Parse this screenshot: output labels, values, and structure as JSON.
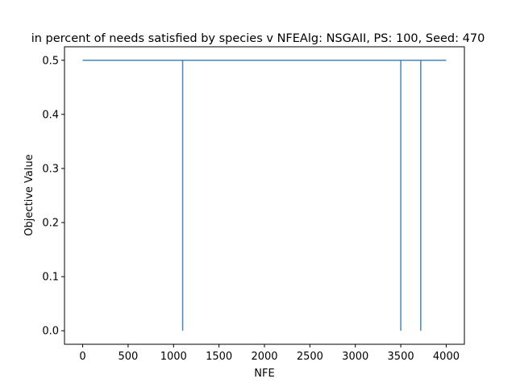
{
  "chart_data": {
    "type": "line",
    "title": "in percent of needs satisfied by species v NFEAlg: NSGAII, PS: 100, Seed: 470",
    "xlabel": "NFE",
    "ylabel": "Objective Value",
    "xlim": [
      -200,
      4200
    ],
    "ylim": [
      -0.025,
      0.525
    ],
    "xticks": [
      0,
      500,
      1000,
      1500,
      2000,
      2500,
      3000,
      3500,
      4000
    ],
    "yticks": [
      0.0,
      0.1,
      0.2,
      0.3,
      0.4,
      0.5
    ],
    "xtick_labels": [
      "0",
      "500",
      "1000",
      "1500",
      "2000",
      "2500",
      "3000",
      "3500",
      "4000"
    ],
    "ytick_labels": [
      "0.0",
      "0.1",
      "0.2",
      "0.3",
      "0.4",
      "0.5"
    ],
    "grid": false,
    "series": [
      {
        "color": "#4a86b8",
        "x": [
          0,
          1100,
          1100,
          1100,
          3500,
          3500,
          3500,
          3720,
          3720,
          3720,
          4000
        ],
        "y": [
          0.5,
          0.5,
          0.0,
          0.5,
          0.5,
          0.0,
          0.5,
          0.5,
          0.0,
          0.5,
          0.5
        ]
      }
    ]
  }
}
